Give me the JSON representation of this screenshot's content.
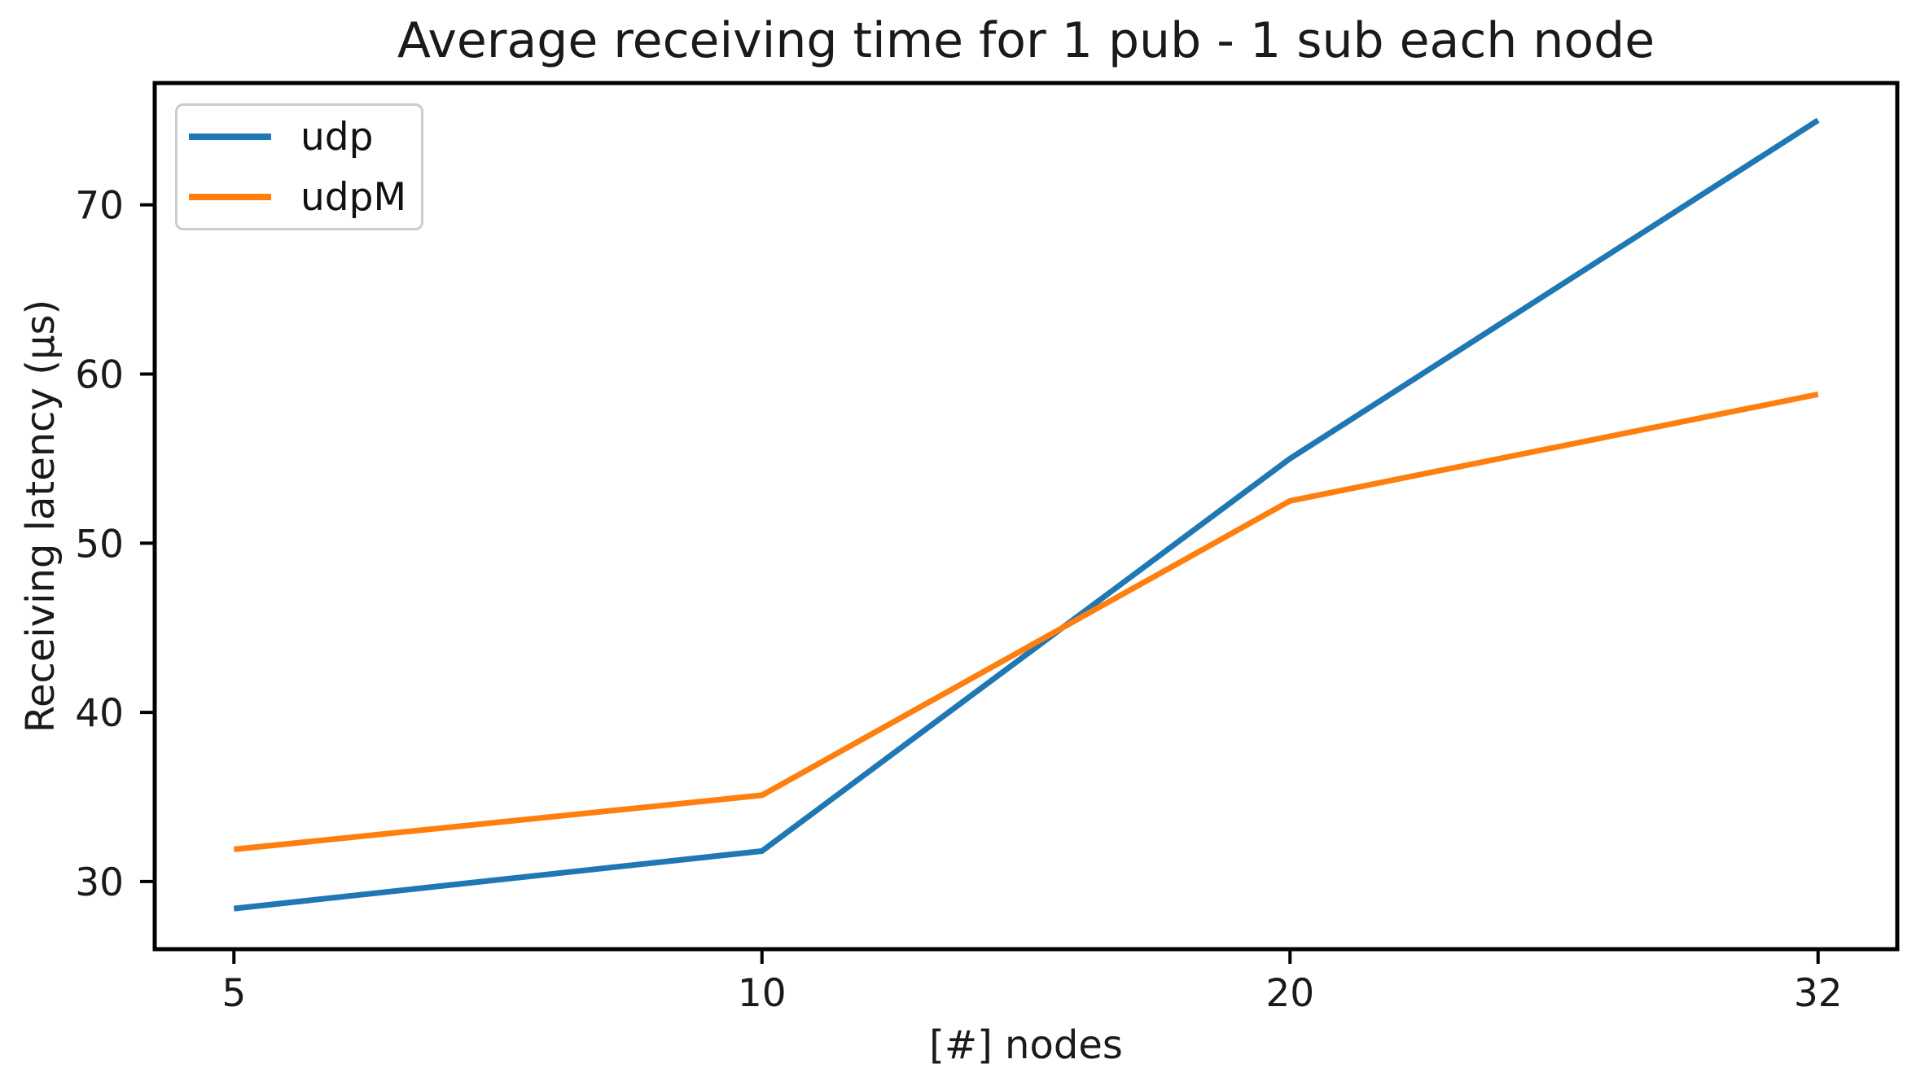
{
  "figure": {
    "background": "#ffffff",
    "text_color": "#1a1a1a",
    "axis_color": "#000000",
    "legend_border_color": "#cccccc"
  },
  "chart_data": {
    "type": "line",
    "title": "Average receiving time for 1 pub - 1 sub each node",
    "xlabel": "[#] nodes",
    "ylabel": "Receiving latency (µs)",
    "x_values": [
      5,
      10,
      20,
      32
    ],
    "x_tick_labels": [
      "5",
      "10",
      "20",
      "32"
    ],
    "x_spacing": "equal-index",
    "series": [
      {
        "name": "udp",
        "color": "#1f77b4",
        "values": [
          28.4,
          31.8,
          55.0,
          75.0
        ]
      },
      {
        "name": "udpM",
        "color": "#ff7f0e",
        "values": [
          31.9,
          35.1,
          52.5,
          58.8
        ]
      }
    ],
    "yticks": [
      30,
      40,
      50,
      60,
      70
    ],
    "ylim": [
      26.0,
      77.2
    ],
    "grid": false,
    "legend": {
      "position": "upper left",
      "entries": [
        "udp",
        "udpM"
      ]
    }
  }
}
